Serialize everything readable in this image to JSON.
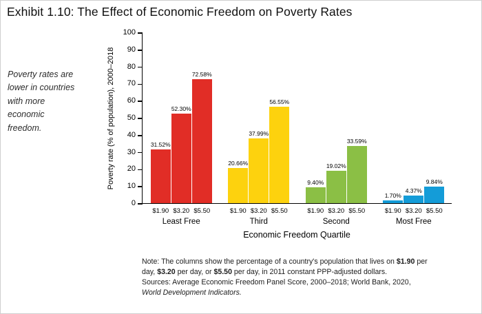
{
  "title": "Exhibit 1.10: The Effect of Economic Freedom on Poverty Rates",
  "sidebar_note": "Poverty rates are lower in countries with more economic freedom.",
  "chart_data": {
    "type": "bar",
    "title": "Exhibit 1.10: The Effect of Economic Freedom on Poverty Rates",
    "categories": [
      "Least Free",
      "Third",
      "Second",
      "Most Free"
    ],
    "sub_categories": [
      "$1.90",
      "$3.20",
      "$5.50"
    ],
    "series": [
      {
        "name": "Least Free",
        "color": "#e12d26",
        "values": [
          31.52,
          52.3,
          72.58
        ],
        "value_labels": [
          "31.52%",
          "52.30%",
          "72.58%"
        ]
      },
      {
        "name": "Third",
        "color": "#fdd20e",
        "values": [
          20.66,
          37.99,
          56.55
        ],
        "value_labels": [
          "20.66%",
          "37.99%",
          "56.55%"
        ]
      },
      {
        "name": "Second",
        "color": "#8bbf45",
        "values": [
          9.4,
          19.02,
          33.59
        ],
        "value_labels": [
          "9.40%",
          "19.02%",
          "33.59%"
        ]
      },
      {
        "name": "Most Free",
        "color": "#149cd8",
        "values": [
          1.7,
          4.37,
          9.84
        ],
        "value_labels": [
          "1.70%",
          "4.37%",
          "9.84%"
        ]
      }
    ],
    "xlabel": "Economic Freedom Quartile",
    "ylabel": "Poverty rate (% of population), 2000–2018",
    "ylim": [
      0,
      100
    ],
    "ytick_step": 10,
    "grid": false,
    "legend": "none",
    "value_label_suffix": "%"
  },
  "footnote": {
    "lines": [
      [
        {
          "t": "Note: The columns show the percentage of a country's population that lives on "
        },
        {
          "t": "$1.90",
          "b": 1
        },
        {
          "t": " per"
        }
      ],
      [
        {
          "t": "day, "
        },
        {
          "t": "$3.20",
          "b": 1
        },
        {
          "t": " per day, or "
        },
        {
          "t": "$5.50",
          "b": 1
        },
        {
          "t": " per day, in 2011 constant PPP-adjusted dollars."
        }
      ],
      [
        {
          "t": "Sources: Average Economic Freedom Panel Score, 2000–2018; World Bank, 2020,"
        }
      ],
      [
        {
          "t": "World Development Indicators.",
          "i": 1
        }
      ]
    ]
  }
}
